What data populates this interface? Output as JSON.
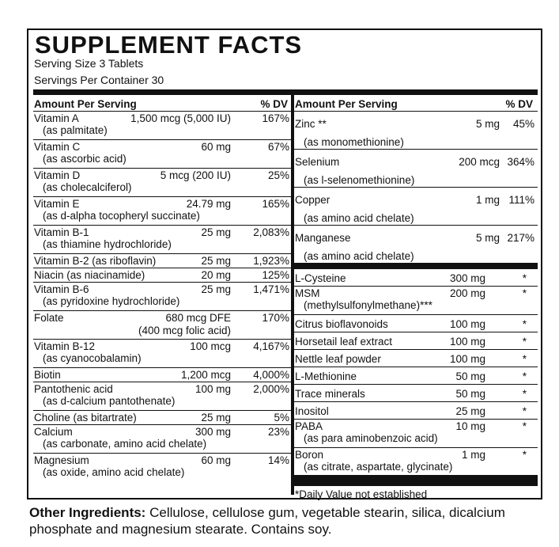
{
  "title": "SUPPLEMENT FACTS",
  "serving_size": "Serving Size 3 Tablets",
  "servings_per_container": "Servings Per Container 30",
  "headers": {
    "amount": "Amount Per  Serving",
    "dv": "% DV"
  },
  "left": [
    {
      "name": "Vitamin A",
      "amount": "1,500 mcg (5,000 IU)",
      "dv": "167%",
      "detail": "(as palmitate)"
    },
    {
      "name": "Vitamin C",
      "amount": "60 mg",
      "dv": "67%",
      "detail": "(as ascorbic acid)"
    },
    {
      "name": "Vitamin D",
      "amount": "5 mcg (200 IU)",
      "dv": "25%",
      "detail": "(as cholecalciferol)"
    },
    {
      "name": "Vitamin E",
      "amount": "24.79 mg",
      "dv": "165%",
      "detail": "(as d-alpha tocopheryl succinate)"
    },
    {
      "name": "Vitamin B-1",
      "amount": "25 mg",
      "dv": "2,083%",
      "detail": "(as thiamine hydrochloride)"
    },
    {
      "name": "Vitamin B-2 (as riboflavin)",
      "amount": "25 mg",
      "dv": "1,923%",
      "detail": ""
    },
    {
      "name": "Niacin (as niacinamide)",
      "amount": "20 mg",
      "dv": "125%",
      "detail": ""
    },
    {
      "name": "Vitamin B-6",
      "amount": "25 mg",
      "dv": "1,471%",
      "detail": "(as pyridoxine hydrochloride)"
    },
    {
      "name": "Folate",
      "amount": "680 mcg DFE",
      "dv": "170%",
      "detail": "(400 mcg folic acid)"
    },
    {
      "name": "Vitamin B-12",
      "amount": "100 mcg",
      "dv": "4,167%",
      "detail": "(as cyanocobalamin)"
    },
    {
      "name": "Biotin",
      "amount": "1,200 mcg",
      "dv": "4,000%",
      "detail": ""
    },
    {
      "name": "Pantothenic acid",
      "amount": "100 mg",
      "dv": "2,000%",
      "detail": "(as d-calcium pantothenate)"
    },
    {
      "name": "Choline (as bitartrate)",
      "amount": "25 mg",
      "dv": "5%",
      "detail": ""
    },
    {
      "name": "Calcium",
      "amount": "300 mg",
      "dv": "23%",
      "detail": "(as carbonate, amino acid chelate)"
    },
    {
      "name": "Magnesium",
      "amount": "60 mg",
      "dv": "14%",
      "detail": "(as oxide, amino acid chelate)"
    }
  ],
  "right_minerals": [
    {
      "name": "Zinc **",
      "amount": "5 mg",
      "dv": "45%",
      "detail": "(as monomethionine)"
    },
    {
      "name": "Selenium",
      "amount": "200 mcg",
      "dv": "364%",
      "detail": "(as l-selenomethionine)"
    },
    {
      "name": "Copper",
      "amount": "1 mg",
      "dv": "111%",
      "detail": "(as amino acid chelate)"
    },
    {
      "name": "Manganese",
      "amount": "5 mg",
      "dv": "217%",
      "detail": "(as amino acid chelate)"
    }
  ],
  "right_other": [
    {
      "name": "L-Cysteine",
      "amount": "300 mg",
      "dv": "*",
      "detail": ""
    },
    {
      "name": "MSM",
      "amount": "200 mg",
      "dv": "*",
      "detail": "(methylsulfonylmethane)***"
    },
    {
      "name": "Citrus bioflavonoids",
      "amount": "100 mg",
      "dv": "*",
      "detail": ""
    },
    {
      "name": "Horsetail leaf extract",
      "amount": "100 mg",
      "dv": "*",
      "detail": ""
    },
    {
      "name": "Nettle leaf powder",
      "amount": "100 mg",
      "dv": "*",
      "detail": ""
    },
    {
      "name": "L-Methionine",
      "amount": "50 mg",
      "dv": "*",
      "detail": ""
    },
    {
      "name": "Trace minerals",
      "amount": "50 mg",
      "dv": "*",
      "detail": ""
    },
    {
      "name": "Inositol",
      "amount": "25 mg",
      "dv": "*",
      "detail": ""
    },
    {
      "name": "PABA",
      "amount": "10 mg",
      "dv": "*",
      "detail": "(as para aminobenzoic acid)"
    },
    {
      "name": "Boron",
      "amount": "1 mg",
      "dv": "*",
      "detail": "(as citrate, aspartate, glycinate)"
    }
  ],
  "footnote": "*Daily Value not established",
  "other_ingredients_label": "Other Ingredients:",
  "other_ingredients_text": " Cellulose, cellulose gum, vegetable stearin, silica, dicalcium phosphate and magnesium stearate. Contains soy."
}
